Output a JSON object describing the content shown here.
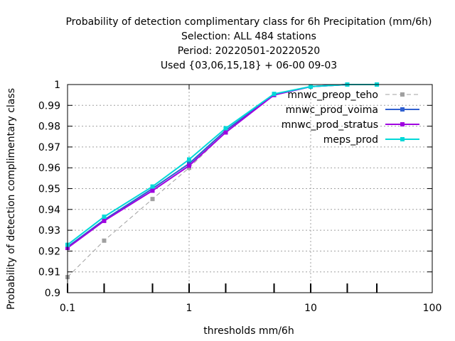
{
  "chart_data": {
    "type": "line",
    "title_lines": [
      "Probability of detection complimentary class  for 6h Precipitation (mm/6h)",
      "Selection: ALL    484 stations",
      "Period: 20220501-20220520",
      "Used {03,06,15,18} + 06-00 09-03"
    ],
    "xlabel": "thresholds mm/6h",
    "ylabel": "Probability of detection complimentary class",
    "xscale": "log",
    "xlim": [
      0.1,
      100
    ],
    "ylim": [
      0.9,
      1.0
    ],
    "xticks": [
      0.1,
      1,
      10,
      100
    ],
    "xtick_labels": [
      "0.1",
      "1",
      "10",
      "100"
    ],
    "yticks": [
      0.9,
      0.91,
      0.92,
      0.93,
      0.94,
      0.95,
      0.96,
      0.97,
      0.98,
      0.99,
      1.0
    ],
    "ytick_labels": [
      "0.9",
      "0.91",
      "0.92",
      "0.93",
      "0.94",
      "0.95",
      "0.96",
      "0.97",
      "0.98",
      "0.99",
      "1"
    ],
    "grid": true,
    "legend_position": "top-right",
    "x": [
      0.1,
      0.2,
      0.5,
      1,
      2,
      5,
      10,
      20,
      35
    ],
    "series": [
      {
        "name": "mnwc_preop_teho",
        "color": "#a0a0a0",
        "dashed": true,
        "values": [
          0.9075,
          0.925,
          0.945,
          0.96,
          0.977,
          0.995,
          0.999,
          1.0,
          1.0
        ]
      },
      {
        "name": "mnwc_prod_voima",
        "color": "#3060d0",
        "dashed": false,
        "values": [
          0.922,
          0.935,
          0.95,
          0.962,
          0.978,
          0.995,
          0.999,
          1.0,
          1.0
        ]
      },
      {
        "name": "mnwc_prod_stratus",
        "color": "#a000e0",
        "dashed": false,
        "values": [
          0.9215,
          0.9345,
          0.949,
          0.961,
          0.977,
          0.995,
          0.999,
          1.0,
          1.0
        ]
      },
      {
        "name": "meps_prod",
        "color": "#00d8d8",
        "dashed": false,
        "values": [
          0.923,
          0.9365,
          0.951,
          0.964,
          0.979,
          0.9955,
          0.999,
          1.0,
          1.0
        ]
      }
    ],
    "tick_marks_at": [
      0.1,
      0.2,
      0.5,
      1,
      2,
      5,
      10,
      20,
      35
    ]
  }
}
